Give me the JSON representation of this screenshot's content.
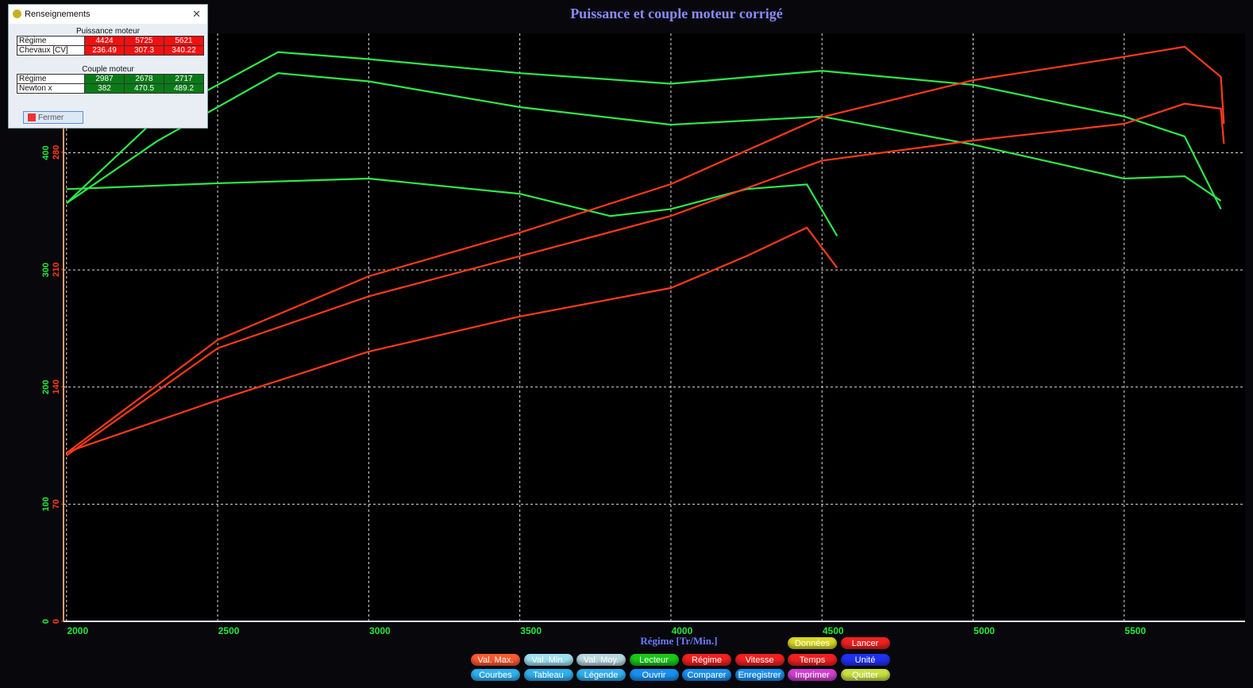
{
  "window": {
    "title": "Renseignements",
    "power_heading": "Puissance moteur",
    "power_rows": [
      {
        "label": "Régime",
        "values": [
          4424,
          5725,
          5621
        ]
      },
      {
        "label": "Chevaux [CV]",
        "values": [
          236.49,
          307.3,
          340.22
        ]
      }
    ],
    "torque_heading": "Couple moteur",
    "torque_rows": [
      {
        "label": "Régime",
        "values": [
          2987,
          2678,
          2717
        ]
      },
      {
        "label": "Newton x",
        "values": [
          382,
          470.5,
          489.2
        ]
      }
    ],
    "close_button": "Fermer"
  },
  "chart_data": {
    "type": "line",
    "title": "Puissance et couple moteur corrigé",
    "x_label": "Régime [Tr/Min.]",
    "xlim": [
      1990,
      5900
    ],
    "xticks": [
      2000,
      2500,
      3000,
      3500,
      4000,
      4500,
      5000,
      5500
    ],
    "ylim": [
      0,
      502
    ],
    "yticks": [
      0,
      100,
      200,
      300,
      400
    ],
    "y_color": "#22e83a",
    "y2lim": [
      0,
      351
    ],
    "y2ticks": [
      0,
      70,
      140,
      210,
      280
    ],
    "y2_color": "#ff3a1a",
    "grid": true,
    "series": [
      {
        "color": "#2ee84a",
        "x": [
          2000,
          2300,
          2700,
          3000,
          3500,
          4000,
          4500,
          5000,
          5500,
          5700,
          5820
        ],
        "values": [
          357,
          430,
          486,
          480,
          468,
          459,
          470,
          458,
          431,
          414,
          352
        ]
      },
      {
        "color": "#2ee84a",
        "x": [
          2000,
          2300,
          2700,
          3000,
          3500,
          4000,
          4500,
          5000,
          5500,
          5700,
          5820
        ],
        "values": [
          357,
          410,
          468,
          461,
          439,
          424,
          431,
          407,
          378,
          380,
          359
        ]
      },
      {
        "color": "#2ee84a",
        "x": [
          2000,
          2500,
          3000,
          3500,
          3800,
          4000,
          4250,
          4450,
          4550
        ],
        "values": [
          369,
          374,
          378,
          365,
          346,
          352,
          369,
          373,
          329
        ]
      },
      {
        "color": "#ff3a1a",
        "axis": "y2",
        "x": [
          2000,
          2500,
          3000,
          3500,
          4000,
          4500,
          5000,
          5500,
          5700,
          5820,
          5830
        ],
        "values": [
          100.5,
          168,
          206,
          232,
          261,
          301,
          323,
          337,
          343,
          325,
          297
        ]
      },
      {
        "color": "#ff3a1a",
        "axis": "y2",
        "x": [
          2000,
          2500,
          3000,
          3500,
          4000,
          4500,
          5000,
          5500,
          5700,
          5820,
          5830
        ],
        "values": [
          99,
          163,
          194,
          218,
          242,
          275,
          287,
          297,
          309,
          306,
          285
        ]
      },
      {
        "color": "#ff3a1a",
        "axis": "y2",
        "x": [
          2000,
          2500,
          3000,
          3500,
          4000,
          4250,
          4450,
          4550
        ],
        "values": [
          101,
          132,
          161,
          182,
          199,
          218,
          235,
          211
        ]
      }
    ]
  },
  "buttons": [
    [
      {
        "label": "Données",
        "color": "#d8d820"
      },
      {
        "label": "Lancer",
        "color": "#f02020"
      }
    ],
    [
      {
        "label": "Val. Max.",
        "color": "#ff5a30"
      },
      {
        "label": "Val. Min.",
        "color": "#9ee0f0"
      },
      {
        "label": "Val. Moy.",
        "color": "#b8d8e0"
      },
      {
        "label": "Lecteur",
        "color": "#18c818"
      },
      {
        "label": "Régime",
        "color": "#f02020"
      },
      {
        "label": "Vitesse",
        "color": "#f02020"
      },
      {
        "label": "Temps",
        "color": "#f02020"
      },
      {
        "label": "Unité",
        "color": "#2030f0"
      }
    ],
    [
      {
        "label": "Courbes",
        "color": "#30b0f0"
      },
      {
        "label": "Tableau",
        "color": "#30b0f0"
      },
      {
        "label": "Légende",
        "color": "#30b0f0"
      },
      {
        "label": "Ouvrir",
        "color": "#1890f0"
      },
      {
        "label": "Comparer",
        "color": "#1890f0"
      },
      {
        "label": "Enregistrer",
        "color": "#1890f0"
      },
      {
        "label": "Imprimer",
        "color": "#d040d0"
      },
      {
        "label": "Quitter",
        "color": "#c8e040"
      }
    ]
  ]
}
